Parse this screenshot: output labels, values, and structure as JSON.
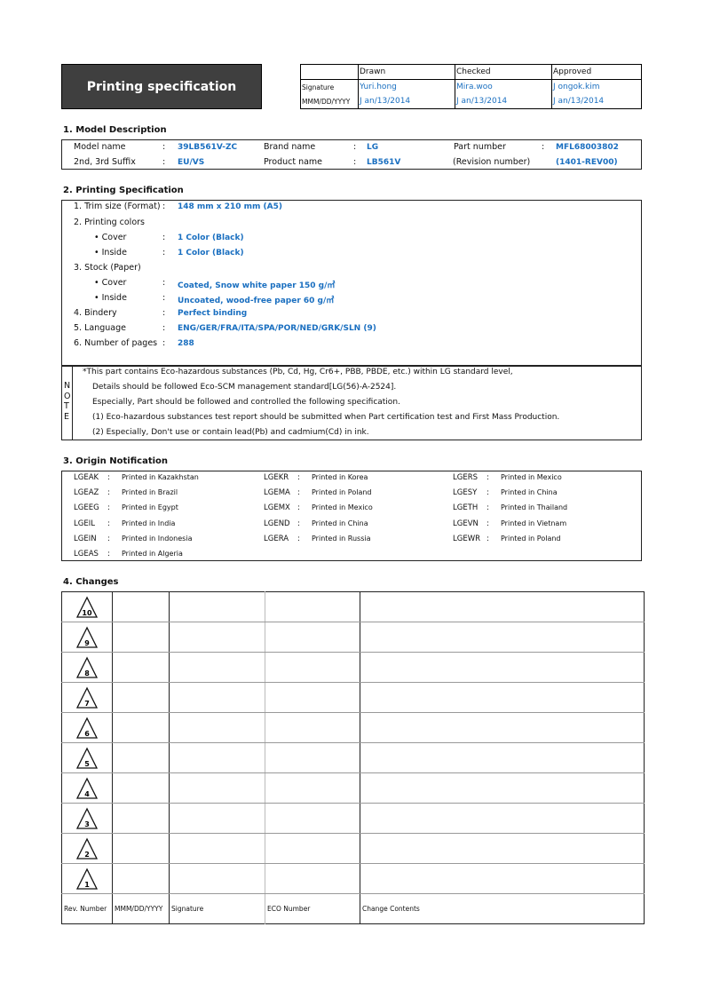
{
  "header": {
    "title": "Printing specification",
    "approval": {
      "columns": [
        "",
        "Drawn",
        "Checked",
        "Approved"
      ],
      "rows": [
        {
          "label": "Signature",
          "values": [
            "Yuri.hong",
            "Mira.woo",
            "J ongok.kim"
          ]
        },
        {
          "label": "MMM/DD/YYYY",
          "values": [
            "J an/13/2014",
            "J an/13/2014",
            "J an/13/2014"
          ]
        }
      ]
    }
  },
  "model": {
    "title": "1. Model Description",
    "rows": [
      [
        {
          "label": "Model name",
          "value": "39LB561V-ZC"
        },
        {
          "label": "Brand name",
          "value": "LG"
        },
        {
          "label": "Part number",
          "value": "MFL68003802"
        }
      ],
      [
        {
          "label": "2nd, 3rd Suffix",
          "value": "EU/VS"
        },
        {
          "label": "Product name",
          "value": "LB561V"
        },
        {
          "label": "(Revision number)",
          "value": "(1401-REV00)"
        }
      ]
    ]
  },
  "printing": {
    "title": "2. Printing Specification",
    "items": [
      {
        "label": "1. Trim size (Format)",
        "value": "148 mm x 210 mm (A5)"
      },
      {
        "label": "2. Printing colors",
        "value": ""
      },
      {
        "label": "• Cover",
        "value": "1 Color (Black)"
      },
      {
        "label": "• Inside",
        "value": "1 Color (Black)"
      },
      {
        "label": "3. Stock (Paper)",
        "value": ""
      },
      {
        "label": "• Cover",
        "value": "Coated, Snow white paper 150 g/㎡"
      },
      {
        "label": "• Inside",
        "value": "Uncoated, wood-free paper 60 g/㎡"
      },
      {
        "label": "4. Bindery",
        "value": "Perfect binding"
      },
      {
        "label": "5. Language",
        "value": "ENG/GER/FRA/ITA/SPA/POR/NED/GRK/SLN (9)"
      },
      {
        "label": "6. Number of pages",
        "value": "288"
      }
    ],
    "colon": ":",
    "note_label": [
      "N",
      "O",
      "T",
      "E"
    ],
    "notes": [
      "*This part contains Eco-hazardous substances (Pb, Cd, Hg, Cr6+, PBB, PBDE, etc.) within LG standard level,",
      "Details should be followed Eco-SCM management standard[LG(56)-A-2524].",
      "Especially, Part should be followed and controlled the following specification.",
      "(1) Eco-hazardous substances test report should be submitted when Part certification test and First Mass Production.",
      "(2) Especially, Don't use or contain lead(Pb) and cadmium(Cd) in ink."
    ]
  },
  "origin": {
    "title": "3. Origin Notification",
    "columns": [
      [
        [
          "LGEAK",
          "Printed in Kazakhstan"
        ],
        [
          "LGEAZ",
          "Printed in Brazil"
        ],
        [
          "LGEEG",
          "Printed in Egypt"
        ],
        [
          "LGEIL",
          "Printed in India"
        ],
        [
          "LGEIN",
          "Printed in Indonesia"
        ],
        [
          "LGEAS",
          "Printed in Algeria"
        ]
      ],
      [
        [
          "LGEKR",
          "Printed in Korea"
        ],
        [
          "LGEMA",
          "Printed in Poland"
        ],
        [
          "LGEMX",
          "Printed in Mexico"
        ],
        [
          "LGEND",
          "Printed in China"
        ],
        [
          "LGERA",
          "Printed in Russia"
        ]
      ],
      [
        [
          "LGERS",
          "Printed in Mexico"
        ],
        [
          "LGESY",
          "Printed in China"
        ],
        [
          "LGETH",
          "Printed in Thailand"
        ],
        [
          "LGEVN",
          "Printed in Vietnam"
        ],
        [
          "LGEWR",
          "Printed in Poland"
        ]
      ]
    ]
  },
  "changes": {
    "title": "4. Changes",
    "revisions": [
      "10",
      "9",
      "8",
      "7",
      "6",
      "5",
      "4",
      "3",
      "2",
      "1"
    ],
    "footer": [
      "Rev. Number",
      "MMM/DD/YYYY",
      "Signature",
      "ECO Number",
      "Change Contents"
    ]
  }
}
